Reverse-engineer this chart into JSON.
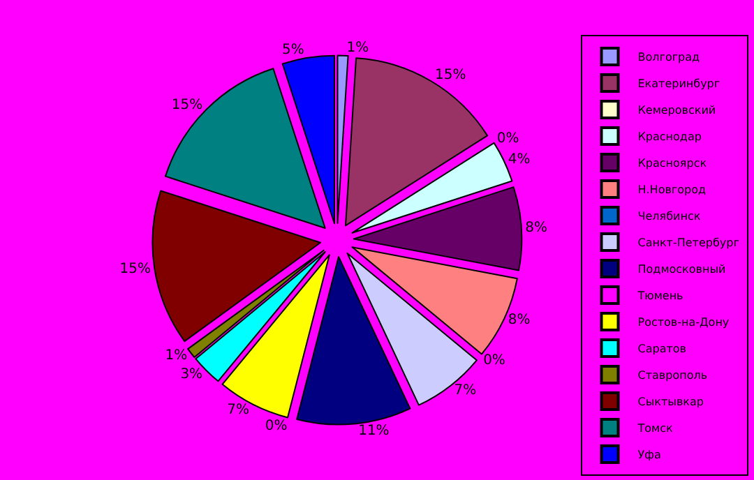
{
  "chart_data": {
    "type": "pie",
    "categories": [
      "Волгоград",
      "Екатеринбург",
      "Кемеровский",
      "Краснодар",
      "Красноярск",
      "Н.Новгород",
      "Челябинск",
      "Санкт-Петербург",
      "Подмосковный",
      "Тюмень",
      "Ростов-на-Дону",
      "Саратов",
      "Ставрополь",
      "Сыктывкар",
      "Томск",
      "Уфа"
    ],
    "values": [
      1,
      15,
      0,
      4,
      8,
      8,
      0,
      7,
      11,
      0,
      7,
      3,
      1,
      15,
      15,
      5
    ],
    "value_labels": [
      "1%",
      "15%",
      "0%",
      "4%",
      "8%",
      "8%",
      "0%",
      "7%",
      "11%",
      "0%",
      "7%",
      "3%",
      "1%",
      "15%",
      "15%",
      "5%"
    ],
    "colors": [
      "#9999ff",
      "#993366",
      "#ffffcc",
      "#ccffff",
      "#660066",
      "#ff8080",
      "#0066cc",
      "#ccccff",
      "#000080",
      "#ff00ff",
      "#ffff00",
      "#00ffff",
      "#808000",
      "#800000",
      "#008080",
      "#0000ff"
    ],
    "legend": "right"
  }
}
